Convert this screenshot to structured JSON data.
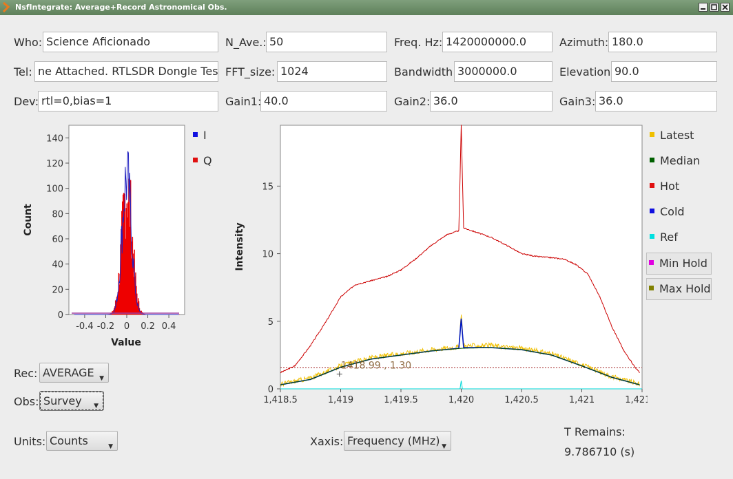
{
  "window": {
    "title": "NsfIntegrate: Average+Record Astronomical Obs."
  },
  "form": {
    "who_label": "Who:",
    "who_value": "Science Aficionado",
    "tel_label": "Tel:",
    "tel_value": "ne Attached.  RTLSDR Dongle Test",
    "dev_label": "Dev:",
    "dev_value": "rtl=0,bias=1",
    "nave_label": "N_Ave.:",
    "nave_value": "50",
    "fft_label": "FFT_size:",
    "fft_value": "1024",
    "gain1_label": "Gain1:",
    "gain1_value": "40.0",
    "freq_label": "Freq. Hz:",
    "freq_value": "1420000000.0",
    "bw_label": "Bandwidth:",
    "bw_value": "3000000.0",
    "gain2_label": "Gain2:",
    "gain2_value": "36.0",
    "az_label": "Azimuth:",
    "az_value": "180.0",
    "el_label": "Elevation:",
    "el_value": "90.0",
    "gain3_label": "Gain3:",
    "gain3_value": "36.0"
  },
  "controls": {
    "rec_label": "Rec:",
    "rec_value": "AVERAGE",
    "obs_label": "Obs:",
    "obs_value": "Survey",
    "units_label": "Units:",
    "units_value": "Counts",
    "xaxis_label": "Xaxis:",
    "xaxis_value": "Frequency (MHz)",
    "tremains_label": "T Remains:",
    "tremains_value": "9.786710 (s)"
  },
  "chart_data": [
    {
      "type": "bar",
      "xlabel": "Value",
      "ylabel": "Count",
      "xlim": [
        -0.55,
        0.55
      ],
      "ylim": [
        0,
        150
      ],
      "xticks": [
        "-0.4",
        "-0.2",
        "0",
        "0.2",
        "0.4"
      ],
      "yticks": [
        "0",
        "20",
        "40",
        "60",
        "80",
        "100",
        "120",
        "140"
      ],
      "legend": {
        "placement": "right",
        "entries": [
          {
            "name": "I",
            "color": "#1010e0"
          },
          {
            "name": "Q",
            "color": "#e01010"
          }
        ]
      },
      "series": [
        {
          "name": "I",
          "color": "#2020c0",
          "peak": 127,
          "center": 0.0,
          "sigma": 0.045
        },
        {
          "name": "Q",
          "color": "#ee0000",
          "peak": 110,
          "center": 0.0,
          "sigma": 0.05
        }
      ]
    },
    {
      "type": "line",
      "ylabel": "Intensity",
      "xlim": [
        1418.5,
        1421.5
      ],
      "ylim": [
        0,
        19.5
      ],
      "xticks": [
        "1,418.5",
        "1,419",
        "1,419.5",
        "1,420",
        "1,420.5",
        "1,421",
        "1,421.5"
      ],
      "yticks": [
        "0",
        "5",
        "10",
        "15"
      ],
      "cursor_text": "1418.99 , 1.30",
      "threshold_y": 1.55,
      "legend": {
        "placement": "right",
        "entries": [
          {
            "name": "Latest",
            "color": "#f0c000"
          },
          {
            "name": "Median",
            "color": "#006000"
          },
          {
            "name": "Hot",
            "color": "#e01010"
          },
          {
            "name": "Cold",
            "color": "#1010e0"
          },
          {
            "name": "Ref",
            "color": "#00e0e0"
          },
          {
            "name": "Min Hold",
            "color": "#e000e0"
          },
          {
            "name": "Max Hold",
            "color": "#808000"
          }
        ]
      },
      "series": [
        {
          "name": "Hot",
          "color": "#cc0000",
          "x": [
            1418.5,
            1418.62,
            1418.75,
            1418.88,
            1419.0,
            1419.12,
            1419.25,
            1419.38,
            1419.5,
            1419.62,
            1419.75,
            1419.88,
            1419.98,
            1420.0,
            1420.02,
            1420.12,
            1420.25,
            1420.38,
            1420.5,
            1420.62,
            1420.75,
            1420.85,
            1420.95,
            1421.05,
            1421.15,
            1421.25,
            1421.35,
            1421.45,
            1421.48
          ],
          "y": [
            1.2,
            1.7,
            3.2,
            5.0,
            6.8,
            7.7,
            8.0,
            8.3,
            8.8,
            9.6,
            10.6,
            11.4,
            11.7,
            19.5,
            11.9,
            11.6,
            11.2,
            10.6,
            10.0,
            9.8,
            9.7,
            9.6,
            9.2,
            8.5,
            6.8,
            4.6,
            2.8,
            1.5,
            1.2
          ]
        },
        {
          "name": "Latest",
          "color": "#f0c000",
          "x": [
            1418.5,
            1418.75,
            1419.0,
            1419.25,
            1419.5,
            1419.75,
            1419.98,
            1420.0,
            1420.02,
            1420.25,
            1420.5,
            1420.75,
            1421.0,
            1421.25,
            1421.48
          ],
          "y": [
            0.35,
            0.8,
            1.7,
            2.3,
            2.6,
            2.9,
            3.1,
            5.4,
            3.2,
            3.2,
            3.0,
            2.6,
            1.8,
            0.9,
            0.35
          ]
        },
        {
          "name": "Cold",
          "color": "#0018c0",
          "x": [
            1418.5,
            1418.75,
            1419.0,
            1419.25,
            1419.5,
            1419.75,
            1419.98,
            1420.0,
            1420.02,
            1420.25,
            1420.5,
            1420.75,
            1421.0,
            1421.25,
            1421.48
          ],
          "y": [
            0.3,
            0.7,
            1.6,
            2.2,
            2.5,
            2.8,
            3.0,
            5.2,
            3.05,
            3.05,
            2.9,
            2.5,
            1.7,
            0.85,
            0.3
          ]
        },
        {
          "name": "Median",
          "color": "#005000",
          "x": [
            1418.5,
            1418.75,
            1419.0,
            1419.25,
            1419.5,
            1419.75,
            1420.0,
            1420.25,
            1420.5,
            1420.75,
            1421.0,
            1421.25,
            1421.48
          ],
          "y": [
            0.3,
            0.7,
            1.6,
            2.2,
            2.5,
            2.8,
            3.0,
            3.05,
            2.9,
            2.5,
            1.7,
            0.85,
            0.3
          ]
        },
        {
          "name": "Ref",
          "color": "#00d8d8",
          "x": [
            1418.5,
            1419.0,
            1419.5,
            1419.99,
            1420.0,
            1420.01,
            1420.5,
            1421.0,
            1421.5
          ],
          "y": [
            0.0,
            0.0,
            0.0,
            0.0,
            0.6,
            0.0,
            0.0,
            0.0,
            0.0
          ]
        }
      ]
    }
  ]
}
